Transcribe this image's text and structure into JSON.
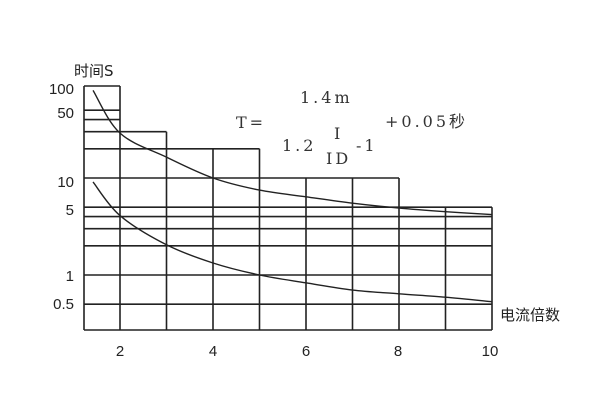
{
  "chart_data": {
    "type": "line",
    "title": "",
    "xlabel": "电流倍数",
    "ylabel": "时间S",
    "y_scale": "log",
    "grid": true,
    "x_ticks": [
      "2",
      "4",
      "6",
      "8",
      "10"
    ],
    "y_ticks": [
      "100",
      "50",
      "10",
      "5",
      "1",
      "0.5"
    ],
    "formula": {
      "lhs": "T=",
      "numerator": "1.4m",
      "den_coef": "1.2",
      "frac_num": "I",
      "frac_den": "ID",
      "den_minus": "-1",
      "suffix": "+0.05秒"
    },
    "series": [
      {
        "x": [
          1.42,
          2,
          3,
          4,
          5,
          6,
          7,
          8,
          9,
          10
        ],
        "y": [
          80,
          29,
          16.4,
          10,
          7.5,
          6.4,
          5.5,
          4.9,
          4.5,
          4.2
        ]
      },
      {
        "x": [
          1.42,
          2,
          3,
          4,
          5,
          6,
          7,
          8,
          9,
          10
        ],
        "y": [
          9.1,
          4.1,
          2.05,
          1.33,
          1.0,
          0.83,
          0.7,
          0.64,
          0.59,
          0.53
        ]
      }
    ]
  }
}
